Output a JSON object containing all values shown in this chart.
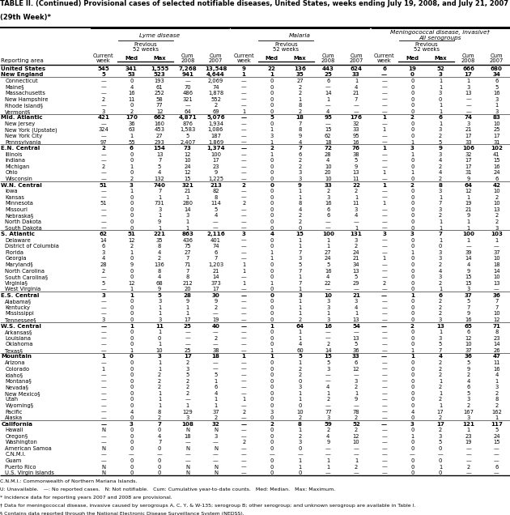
{
  "title_line1": "TABLE II. (Continued) Provisional cases of selected notifiable diseases, United States, weeks ending July 19, 2008, and July 21, 2007",
  "title_line2": "(29th Week)*",
  "rows": [
    [
      "United States",
      "545",
      "341",
      "1,555",
      "7,268",
      "13,548",
      "9",
      "22",
      "136",
      "443",
      "624",
      "6",
      "19",
      "52",
      "666",
      "680"
    ],
    [
      "New England",
      "5",
      "53",
      "523",
      "941",
      "4,644",
      "1",
      "1",
      "35",
      "25",
      "33",
      "—",
      "0",
      "3",
      "17",
      "34"
    ],
    [
      "Connecticut",
      "—",
      "0",
      "193",
      "—",
      "2,069",
      "—",
      "0",
      "27",
      "6",
      "1",
      "—",
      "0",
      "1",
      "1",
      "6"
    ],
    [
      "Maine§",
      "—",
      "4",
      "61",
      "70",
      "74",
      "—",
      "0",
      "2",
      "—",
      "4",
      "—",
      "0",
      "1",
      "3",
      "5"
    ],
    [
      "Massachusetts",
      "—",
      "16",
      "252",
      "486",
      "1,878",
      "—",
      "0",
      "2",
      "14",
      "21",
      "—",
      "0",
      "3",
      "13",
      "16"
    ],
    [
      "New Hampshire",
      "2",
      "11",
      "58",
      "321",
      "552",
      "—",
      "0",
      "1",
      "1",
      "7",
      "—",
      "0",
      "0",
      "—",
      "3"
    ],
    [
      "Rhode Island§",
      "—",
      "0",
      "77",
      "—",
      "2",
      "—",
      "0",
      "8",
      "—",
      "—",
      "—",
      "0",
      "1",
      "—",
      "1"
    ],
    [
      "Vermont§",
      "3",
      "2",
      "12",
      "64",
      "69",
      "1",
      "0",
      "2",
      "4",
      "—",
      "—",
      "0",
      "1",
      "—",
      "3"
    ],
    [
      "Mid. Atlantic",
      "421",
      "170",
      "662",
      "4,871",
      "5,076",
      "—",
      "5",
      "18",
      "95",
      "176",
      "1",
      "2",
      "6",
      "74",
      "83"
    ],
    [
      "New Jersey",
      "—",
      "36",
      "160",
      "876",
      "1,934",
      "—",
      "0",
      "7",
      "—",
      "32",
      "—",
      "0",
      "1",
      "3",
      "10"
    ],
    [
      "New York (Upstate)",
      "324",
      "63",
      "453",
      "1,583",
      "1,086",
      "—",
      "1",
      "8",
      "15",
      "33",
      "1",
      "0",
      "3",
      "21",
      "25"
    ],
    [
      "New York City",
      "—",
      "1",
      "27",
      "5",
      "187",
      "—",
      "3",
      "9",
      "62",
      "95",
      "—",
      "0",
      "2",
      "17",
      "17"
    ],
    [
      "Pennsylvania",
      "97",
      "55",
      "293",
      "2,407",
      "1,869",
      "—",
      "1",
      "4",
      "18",
      "16",
      "—",
      "1",
      "5",
      "33",
      "31"
    ],
    [
      "E.N. Central",
      "2",
      "6",
      "154",
      "73",
      "1,374",
      "—",
      "2",
      "7",
      "72",
      "76",
      "1",
      "3",
      "9",
      "106",
      "102"
    ],
    [
      "Illinois",
      "—",
      "0",
      "13",
      "12",
      "100",
      "—",
      "1",
      "6",
      "28",
      "38",
      "—",
      "1",
      "3",
      "32",
      "41"
    ],
    [
      "Indiana",
      "—",
      "0",
      "7",
      "10",
      "17",
      "—",
      "0",
      "2",
      "4",
      "5",
      "—",
      "0",
      "4",
      "17",
      "15"
    ],
    [
      "Michigan",
      "2",
      "1",
      "5",
      "24",
      "23",
      "—",
      "0",
      "2",
      "10",
      "9",
      "—",
      "0",
      "2",
      "17",
      "16"
    ],
    [
      "Ohio",
      "—",
      "0",
      "4",
      "12",
      "9",
      "—",
      "0",
      "3",
      "20",
      "13",
      "1",
      "1",
      "4",
      "31",
      "24"
    ],
    [
      "Wisconsin",
      "—",
      "2",
      "132",
      "15",
      "1,225",
      "—",
      "0",
      "3",
      "10",
      "11",
      "—",
      "0",
      "2",
      "9",
      "6"
    ],
    [
      "W.N. Central",
      "51",
      "3",
      "740",
      "321",
      "213",
      "2",
      "0",
      "9",
      "33",
      "22",
      "1",
      "2",
      "8",
      "64",
      "42"
    ],
    [
      "Iowa",
      "—",
      "1",
      "7",
      "21",
      "82",
      "—",
      "0",
      "1",
      "2",
      "2",
      "—",
      "0",
      "3",
      "12",
      "10"
    ],
    [
      "Kansas",
      "—",
      "0",
      "1",
      "1",
      "8",
      "—",
      "0",
      "1",
      "3",
      "1",
      "—",
      "0",
      "1",
      "1",
      "2"
    ],
    [
      "Minnesota",
      "51",
      "0",
      "731",
      "280",
      "114",
      "2",
      "0",
      "8",
      "16",
      "11",
      "1",
      "0",
      "7",
      "19",
      "10"
    ],
    [
      "Missouri",
      "—",
      "0",
      "3",
      "14",
      "5",
      "—",
      "0",
      "4",
      "6",
      "3",
      "—",
      "0",
      "3",
      "21",
      "13"
    ],
    [
      "Nebraska§",
      "—",
      "0",
      "1",
      "3",
      "4",
      "—",
      "0",
      "2",
      "6",
      "4",
      "—",
      "0",
      "2",
      "9",
      "2"
    ],
    [
      "North Dakota",
      "—",
      "0",
      "9",
      "1",
      "—",
      "—",
      "0",
      "2",
      "—",
      "—",
      "—",
      "0",
      "1",
      "1",
      "2"
    ],
    [
      "South Dakota",
      "—",
      "0",
      "1",
      "1",
      "—",
      "—",
      "0",
      "0",
      "—",
      "1",
      "—",
      "0",
      "1",
      "1",
      "3"
    ],
    [
      "S. Atlantic",
      "62",
      "51",
      "221",
      "863",
      "2,116",
      "3",
      "4",
      "15",
      "100",
      "131",
      "3",
      "3",
      "7",
      "100",
      "103"
    ],
    [
      "Delaware",
      "14",
      "12",
      "35",
      "436",
      "401",
      "—",
      "0",
      "1",
      "1",
      "3",
      "—",
      "0",
      "1",
      "1",
      "1"
    ],
    [
      "District of Columbia",
      "6",
      "2",
      "8",
      "75",
      "74",
      "—",
      "0",
      "1",
      "1",
      "2",
      "—",
      "0",
      "0",
      "—",
      "—"
    ],
    [
      "Florida",
      "3",
      "1",
      "4",
      "27",
      "6",
      "—",
      "1",
      "7",
      "27",
      "24",
      "—",
      "1",
      "3",
      "39",
      "37"
    ],
    [
      "Georgia",
      "4",
      "0",
      "2",
      "7",
      "7",
      "—",
      "1",
      "3",
      "24",
      "21",
      "1",
      "0",
      "3",
      "14",
      "10"
    ],
    [
      "Maryland§",
      "28",
      "9",
      "136",
      "71",
      "1,203",
      "1",
      "0",
      "5",
      "5",
      "34",
      "—",
      "0",
      "2",
      "4",
      "18"
    ],
    [
      "North Carolina",
      "2",
      "0",
      "8",
      "7",
      "21",
      "1",
      "0",
      "7",
      "16",
      "13",
      "—",
      "0",
      "4",
      "9",
      "14"
    ],
    [
      "South Carolina§",
      "—",
      "0",
      "4",
      "8",
      "14",
      "—",
      "0",
      "1",
      "4",
      "5",
      "—",
      "0",
      "3",
      "15",
      "10"
    ],
    [
      "Virginia§",
      "5",
      "12",
      "68",
      "212",
      "373",
      "1",
      "1",
      "7",
      "22",
      "29",
      "2",
      "0",
      "2",
      "15",
      "13"
    ],
    [
      "West Virginia",
      "—",
      "1",
      "9",
      "20",
      "17",
      "—",
      "0",
      "1",
      "—",
      "—",
      "—",
      "0",
      "1",
      "3",
      "—"
    ],
    [
      "E.S. Central",
      "3",
      "1",
      "5",
      "28",
      "30",
      "—",
      "0",
      "3",
      "10",
      "21",
      "—",
      "1",
      "6",
      "37",
      "36"
    ],
    [
      "Alabama§",
      "—",
      "0",
      "3",
      "9",
      "9",
      "—",
      "0",
      "1",
      "3",
      "3",
      "—",
      "0",
      "2",
      "5",
      "7"
    ],
    [
      "Kentucky",
      "—",
      "0",
      "1",
      "1",
      "2",
      "—",
      "0",
      "1",
      "3",
      "4",
      "—",
      "0",
      "2",
      "7",
      "7"
    ],
    [
      "Mississippi",
      "—",
      "0",
      "1",
      "1",
      "—",
      "—",
      "0",
      "1",
      "1",
      "1",
      "—",
      "0",
      "2",
      "9",
      "10"
    ],
    [
      "Tennessee§",
      "3",
      "0",
      "3",
      "17",
      "19",
      "—",
      "0",
      "2",
      "3",
      "13",
      "—",
      "0",
      "3",
      "16",
      "12"
    ],
    [
      "W.S. Central",
      "—",
      "1",
      "11",
      "25",
      "40",
      "—",
      "1",
      "64",
      "16",
      "54",
      "—",
      "2",
      "13",
      "65",
      "71"
    ],
    [
      "Arkansas§",
      "—",
      "0",
      "1",
      "—",
      "—",
      "—",
      "0",
      "1",
      "—",
      "—",
      "—",
      "0",
      "1",
      "6",
      "8"
    ],
    [
      "Louisiana",
      "—",
      "0",
      "0",
      "—",
      "2",
      "—",
      "0",
      "1",
      "—",
      "13",
      "—",
      "0",
      "3",
      "12",
      "23"
    ],
    [
      "Oklahoma",
      "—",
      "0",
      "1",
      "—",
      "—",
      "—",
      "0",
      "4",
      "2",
      "5",
      "—",
      "0",
      "5",
      "10",
      "14"
    ],
    [
      "Texas§",
      "—",
      "1",
      "10",
      "25",
      "38",
      "—",
      "1",
      "60",
      "14",
      "36",
      "—",
      "1",
      "7",
      "37",
      "26"
    ],
    [
      "Mountain",
      "1",
      "0",
      "3",
      "17",
      "18",
      "1",
      "1",
      "5",
      "15",
      "33",
      "—",
      "1",
      "4",
      "36",
      "47"
    ],
    [
      "Arizona",
      "—",
      "0",
      "1",
      "2",
      "—",
      "—",
      "0",
      "1",
      "5",
      "6",
      "—",
      "0",
      "2",
      "5",
      "11"
    ],
    [
      "Colorado",
      "1",
      "0",
      "1",
      "3",
      "—",
      "—",
      "0",
      "2",
      "3",
      "12",
      "—",
      "0",
      "2",
      "9",
      "16"
    ],
    [
      "Idaho§",
      "—",
      "0",
      "2",
      "5",
      "5",
      "—",
      "0",
      "2",
      "—",
      "—",
      "—",
      "0",
      "2",
      "2",
      "4"
    ],
    [
      "Montana§",
      "—",
      "0",
      "2",
      "2",
      "1",
      "—",
      "0",
      "0",
      "—",
      "3",
      "—",
      "0",
      "1",
      "4",
      "1"
    ],
    [
      "Nevada§",
      "—",
      "0",
      "2",
      "2",
      "6",
      "—",
      "0",
      "3",
      "4",
      "2",
      "—",
      "0",
      "2",
      "6",
      "3"
    ],
    [
      "New Mexico§",
      "—",
      "0",
      "1",
      "2",
      "4",
      "—",
      "0",
      "1",
      "1",
      "1",
      "—",
      "0",
      "1",
      "5",
      "2"
    ],
    [
      "Utah",
      "—",
      "0",
      "1",
      "—",
      "1",
      "1",
      "0",
      "1",
      "2",
      "9",
      "—",
      "0",
      "2",
      "3",
      "8"
    ],
    [
      "Wyoming§",
      "—",
      "0",
      "1",
      "1",
      "1",
      "—",
      "0",
      "0",
      "—",
      "—",
      "—",
      "0",
      "1",
      "2",
      "2"
    ],
    [
      "Pacific",
      "—",
      "4",
      "8",
      "129",
      "37",
      "2",
      "3",
      "10",
      "77",
      "78",
      "—",
      "4",
      "17",
      "167",
      "162"
    ],
    [
      "Alaska",
      "—",
      "0",
      "2",
      "3",
      "2",
      "—",
      "0",
      "2",
      "3",
      "2",
      "—",
      "0",
      "2",
      "3",
      "1"
    ],
    [
      "California",
      "—",
      "3",
      "7",
      "108",
      "32",
      "—",
      "2",
      "8",
      "59",
      "52",
      "—",
      "3",
      "17",
      "121",
      "117"
    ],
    [
      "Hawaii",
      "N",
      "0",
      "0",
      "N",
      "N",
      "—",
      "0",
      "1",
      "2",
      "2",
      "—",
      "0",
      "2",
      "1",
      "5"
    ],
    [
      "Oregon§",
      "—",
      "0",
      "4",
      "18",
      "3",
      "—",
      "0",
      "2",
      "4",
      "12",
      "—",
      "1",
      "3",
      "23",
      "24"
    ],
    [
      "Washington",
      "—",
      "0",
      "7",
      "—",
      "—",
      "2",
      "0",
      "3",
      "9",
      "10",
      "—",
      "0",
      "5",
      "19",
      "15"
    ],
    [
      "American Samoa",
      "N",
      "0",
      "0",
      "N",
      "N",
      "—",
      "0",
      "0",
      "—",
      "—",
      "—",
      "0",
      "0",
      "—",
      "—"
    ],
    [
      "C.N.M.I.",
      "—",
      "—",
      "—",
      "—",
      "—",
      "—",
      "—",
      "—",
      "—",
      "—",
      "—",
      "—",
      "—",
      "—",
      "—"
    ],
    [
      "Guam",
      "—",
      "0",
      "0",
      "—",
      "—",
      "—",
      "0",
      "1",
      "1",
      "1",
      "—",
      "0",
      "0",
      "—",
      "—"
    ],
    [
      "Puerto Rico",
      "N",
      "0",
      "0",
      "N",
      "N",
      "—",
      "0",
      "1",
      "1",
      "2",
      "—",
      "0",
      "1",
      "2",
      "6"
    ],
    [
      "U.S. Virgin Islands",
      "N",
      "0",
      "0",
      "N",
      "N",
      "—",
      "0",
      "0",
      "—",
      "—",
      "—",
      "0",
      "0",
      "—",
      "—"
    ]
  ],
  "bold_rows": [
    0,
    1,
    8,
    13,
    19,
    27,
    37,
    42,
    47,
    58
  ],
  "footer_lines": [
    "C.N.M.I.: Commonwealth of Northern Mariana Islands.",
    "U: Unavailable.   —: No reported cases.   N: Not notifiable.   Cum: Cumulative year-to-date counts.   Med: Median.   Max: Maximum.",
    "* Incidence data for reporting years 2007 and 2008 are provisional.",
    "† Data for meningococcal disease, invasive caused by serogroups A, C, Y, & W-135; serogroup B; other serogroup; and unknown serogroup are available in Table I.",
    "§ Contains data reported through the National Electronic Disease Surveillance System (NEDSS)."
  ]
}
